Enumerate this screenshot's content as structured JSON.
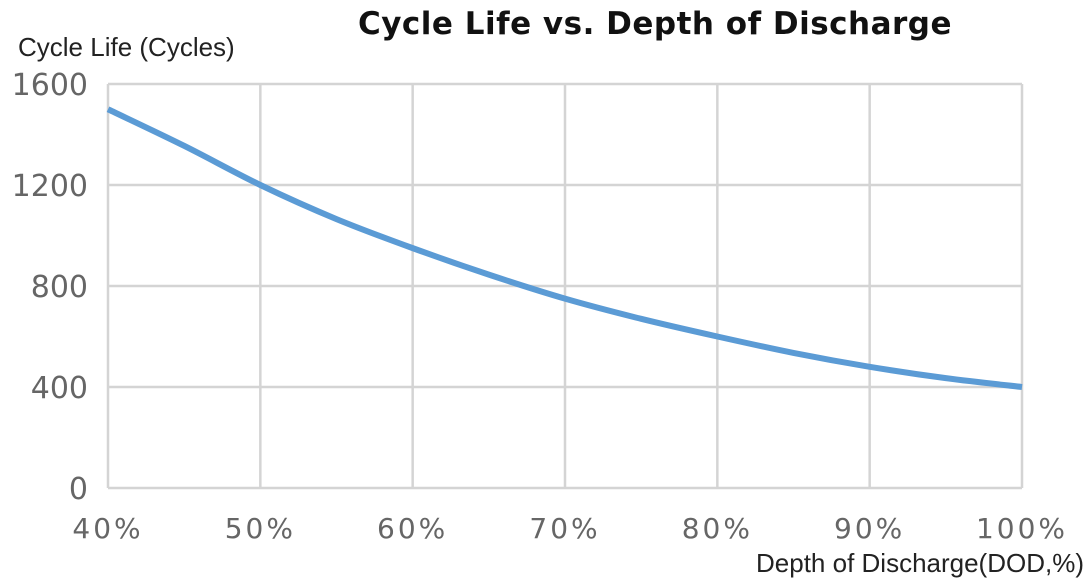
{
  "chart_data": {
    "type": "line",
    "title": "Cycle Life vs. Depth of Discharge",
    "xlabel": "Depth of Discharge(DOD,%)",
    "ylabel": "Cycle Life (Cycles)",
    "x": [
      40,
      45,
      50,
      55,
      60,
      65,
      70,
      75,
      80,
      85,
      90,
      95,
      100
    ],
    "x_tick_labels": [
      "40%",
      "50%",
      "60%",
      "70%",
      "80%",
      "90%",
      "100%"
    ],
    "y_ticks": [
      0,
      400,
      800,
      1200,
      1600
    ],
    "xlim": [
      40,
      100
    ],
    "ylim": [
      0,
      1600
    ],
    "grid": true,
    "series": [
      {
        "values": [
          1500,
          1355,
          1200,
          1065,
          950,
          845,
          750,
          670,
          600,
          535,
          480,
          435,
          400
        ],
        "color": "#5b9bd5"
      }
    ]
  }
}
